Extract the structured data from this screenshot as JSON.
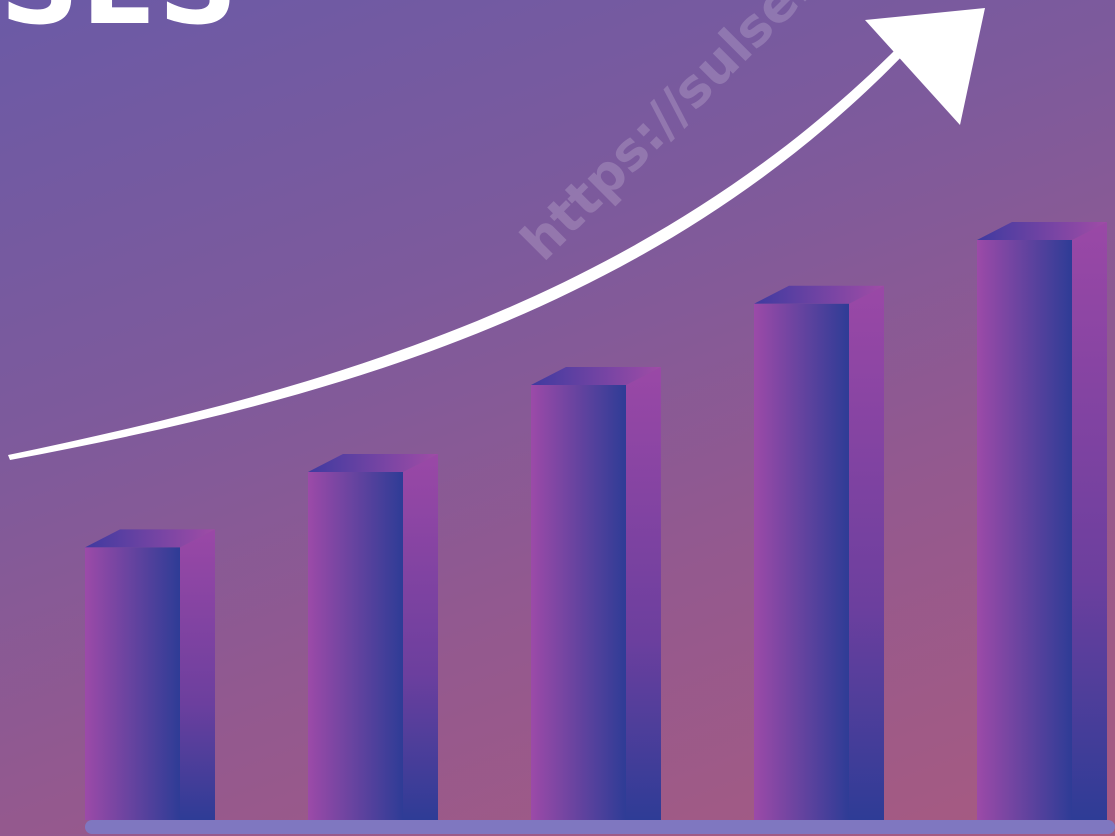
{
  "headline": "SES",
  "watermark": "https://sulsel.bps.go.id",
  "colors": {
    "background_start": "#6b5aa6",
    "background_end": "#a85a80",
    "bar_front_left": "#9c4aa8",
    "bar_front_right": "#2e3c96",
    "bar_top": "#5a3fa0",
    "arrow": "#ffffff",
    "baseline": "#7f77c0"
  },
  "icons": {
    "growth_arrow": "arrow-up-right-icon"
  },
  "bar_levels": [
    0.47,
    0.6,
    0.75,
    0.89,
    1.0
  ]
}
